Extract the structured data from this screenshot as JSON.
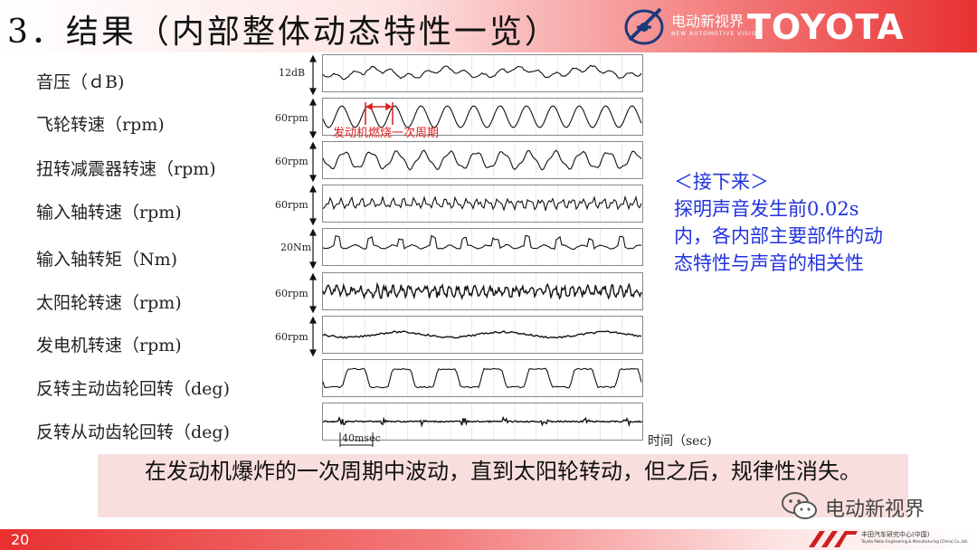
{
  "header": {
    "title": "3．结果（内部整体动态特性一览）",
    "logo_text": "电动新视界",
    "logo_subtext": "NEW AUTOMOTIVE VISION",
    "brand": "TOYOTA"
  },
  "rows": [
    {
      "label": "音压（ｄB)",
      "scale": "12dB"
    },
    {
      "label": "飞轮转速（rpm)",
      "scale": "60rpm"
    },
    {
      "label": "扭转减震器转速（rpm)",
      "scale": "60rpm"
    },
    {
      "label": "输入轴转速（rpm)",
      "scale": "60rpm"
    },
    {
      "label": "输入轴转矩（Nm)",
      "scale": "20Nm"
    },
    {
      "label": "太阳轮转速（rpm)",
      "scale": "60rpm"
    },
    {
      "label": "发电机转速（rpm)",
      "scale": "60rpm"
    },
    {
      "label": "反转主动齿轮回转（deg)",
      "scale": ""
    },
    {
      "label": "反转从动齿轮回转（deg)",
      "scale": ""
    }
  ],
  "annotation": "发动机燃烧一次周期",
  "time_axis_label": "时间（sec)",
  "time_scale_label": "40msec",
  "side_note": [
    "＜接下来＞",
    "探明声音发生前0.02s",
    "内，各内部主要部件的动",
    "态特性与声音的相关性"
  ],
  "conclusion": "在发动机爆炸的一次周期中波动，直到太阳轮转动，但之后，规律性消失。",
  "watermark": "电动新视界",
  "footer": {
    "page": "20",
    "logo_text": "丰田汽车研究中心(中国)",
    "logo_subtext": "Toyota Motor Engineering & Manufacturing (China) Co.,Ltd."
  },
  "colors": {
    "accent_red": "#e83030",
    "note_blue": "#2233dd",
    "box_pink": "#f9dede",
    "annotation_red": "#e02020"
  }
}
